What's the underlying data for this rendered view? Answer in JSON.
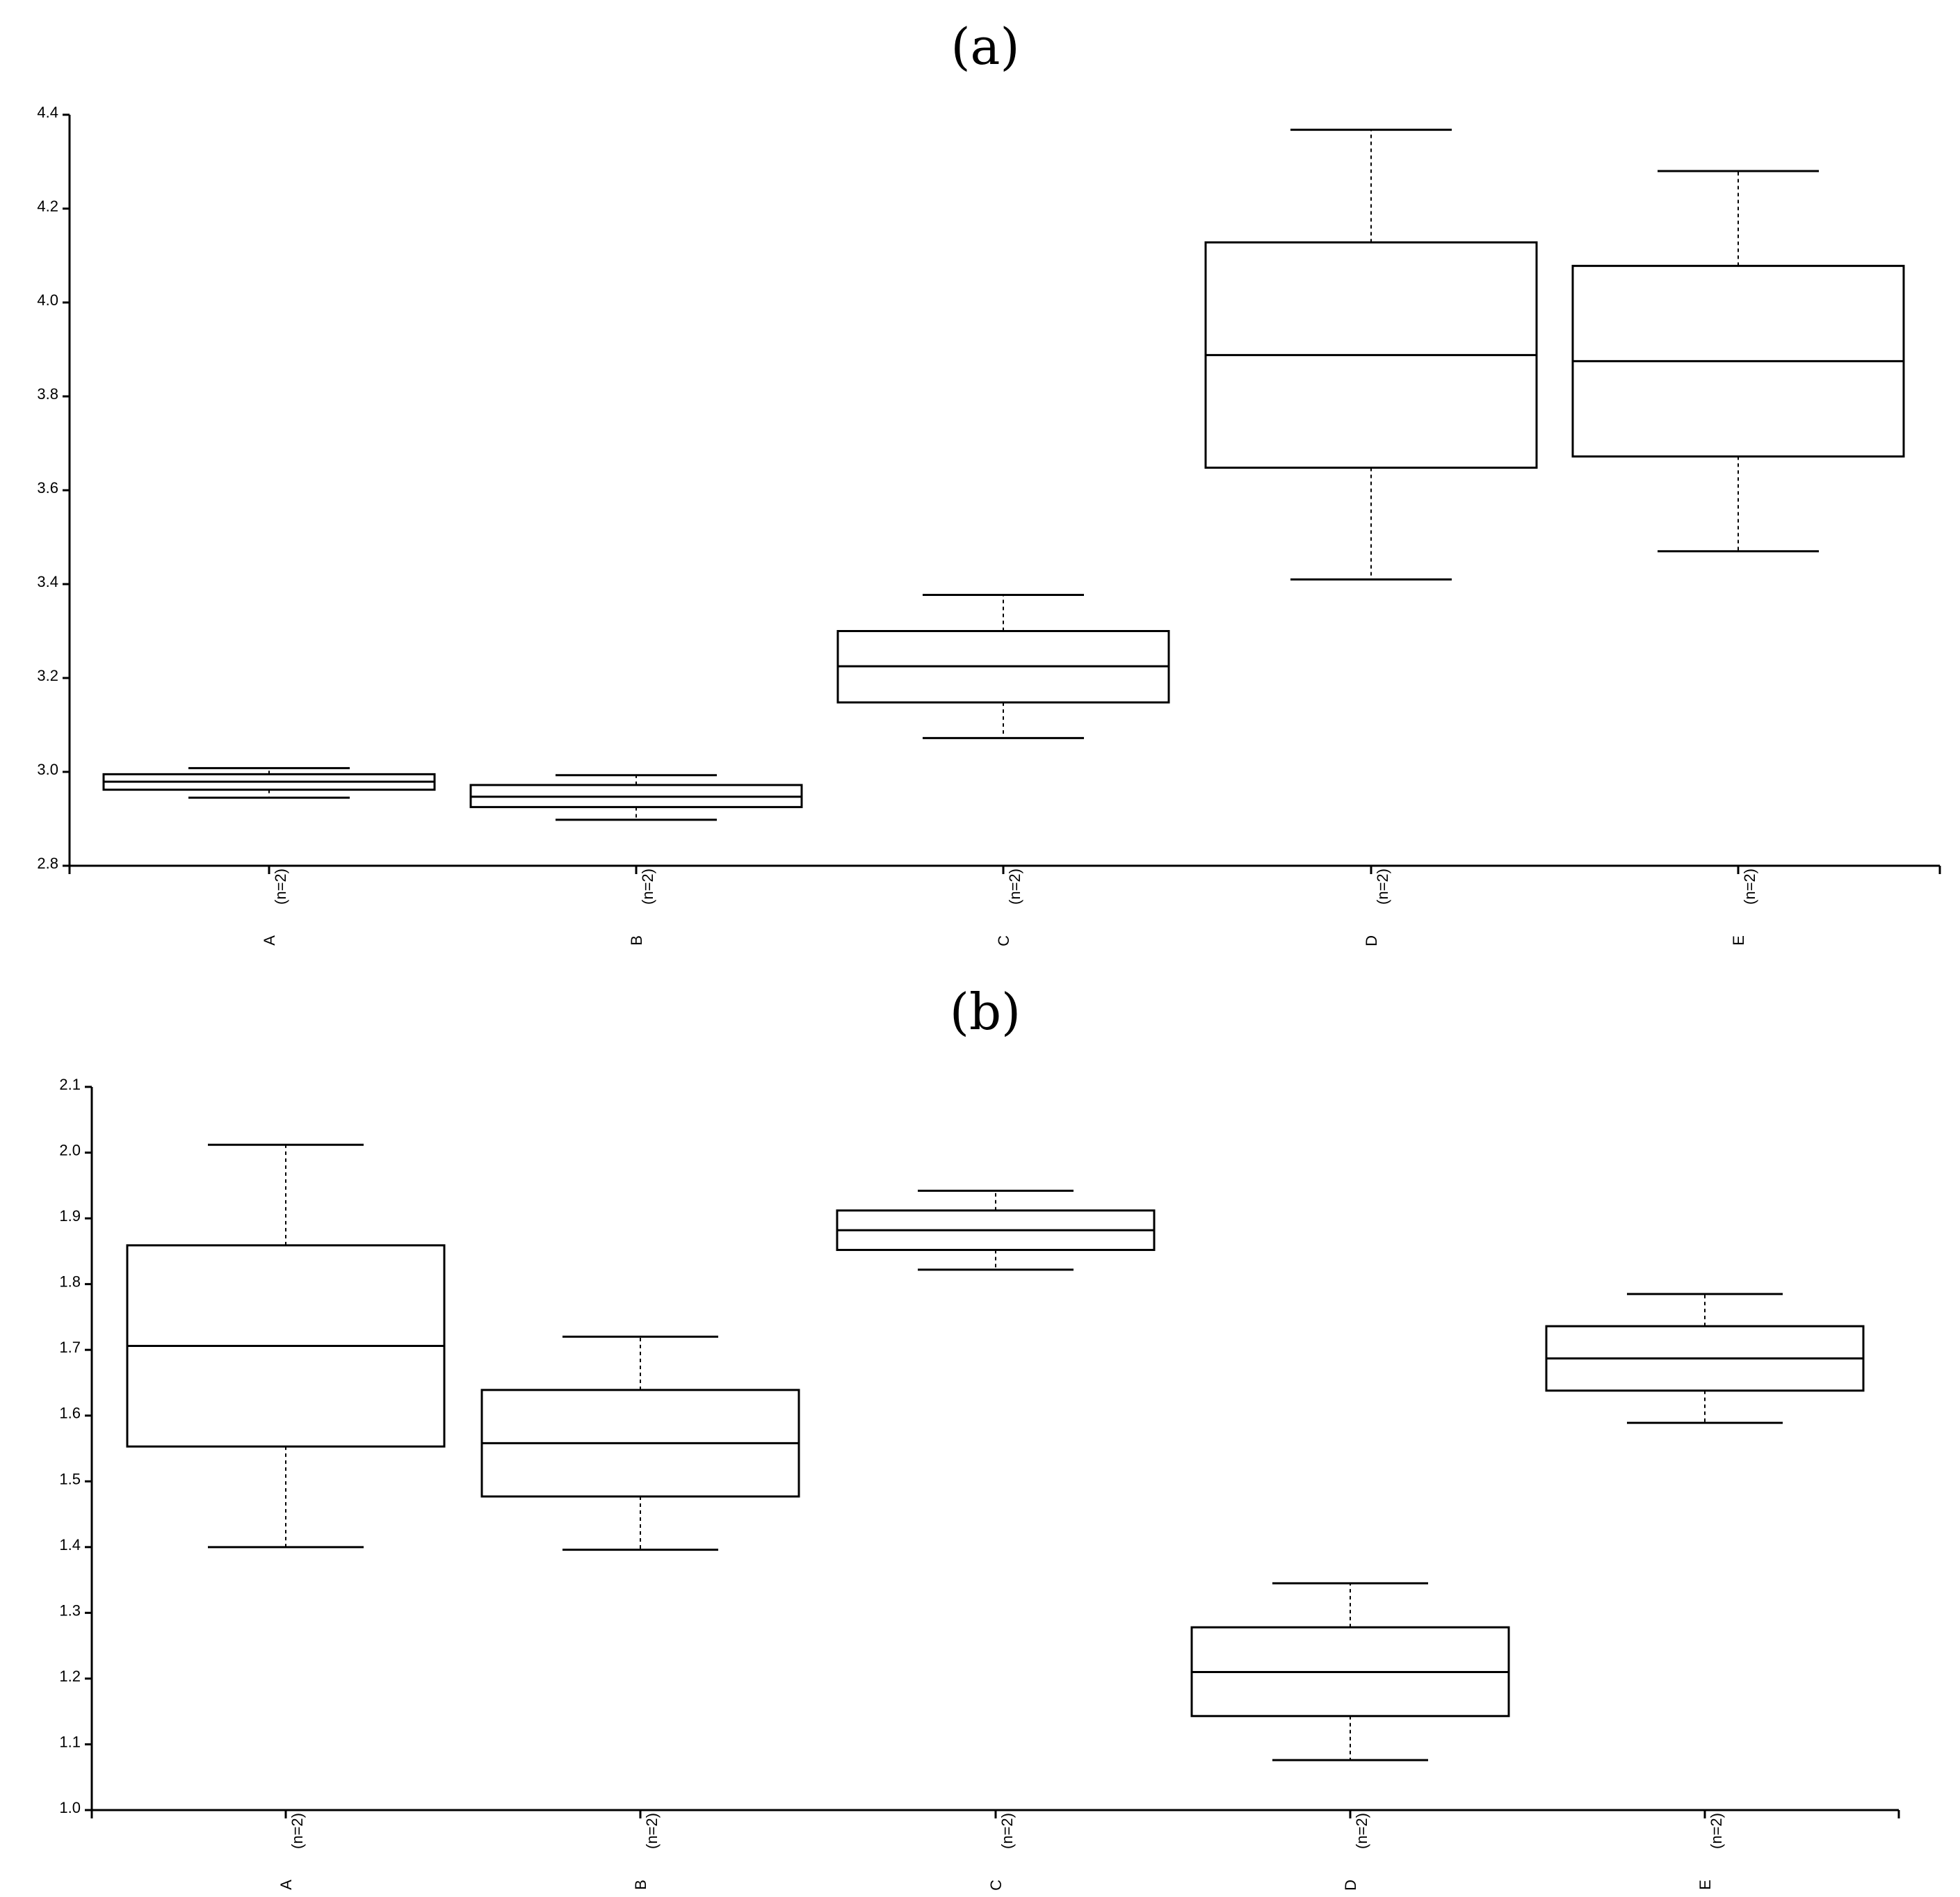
{
  "chart_data": [
    {
      "type": "boxplot",
      "title": "(a)",
      "ylim": [
        2.8,
        4.4
      ],
      "yticks": [
        "2.8",
        "3.0",
        "3.2",
        "3.4",
        "3.6",
        "3.8",
        "4.0",
        "4.2",
        "4.4"
      ],
      "categories": [
        "A",
        "B",
        "C",
        "D",
        "E"
      ],
      "count_labels": [
        "(n=2)",
        "(n=2)",
        "(n=2)",
        "(n=2)",
        "(n=2)"
      ],
      "boxes": [
        {
          "min": 2.945,
          "q1": 2.962,
          "median": 2.979,
          "q3": 2.995,
          "max": 3.008
        },
        {
          "min": 2.898,
          "q1": 2.925,
          "median": 2.947,
          "q3": 2.972,
          "max": 2.993
        },
        {
          "min": 3.072,
          "q1": 3.148,
          "median": 3.225,
          "q3": 3.3,
          "max": 3.377
        },
        {
          "min": 3.41,
          "q1": 3.648,
          "median": 3.888,
          "q3": 4.128,
          "max": 4.368
        },
        {
          "min": 3.47,
          "q1": 3.672,
          "median": 3.875,
          "q3": 4.078,
          "max": 4.28
        }
      ],
      "grid": false,
      "legend": "none"
    },
    {
      "type": "boxplot",
      "title": "(b)",
      "ylim": [
        1.0,
        2.1
      ],
      "yticks": [
        "1.0",
        "1.1",
        "1.2",
        "1.3",
        "1.4",
        "1.5",
        "1.6",
        "1.7",
        "1.8",
        "1.9",
        "2.0",
        "2.1"
      ],
      "categories": [
        "A",
        "B",
        "C",
        "D",
        "E"
      ],
      "count_labels": [
        "(n=2)",
        "(n=2)",
        "(n=2)",
        "(n=2)",
        "(n=2)"
      ],
      "boxes": [
        {
          "min": 1.4,
          "q1": 1.553,
          "median": 1.706,
          "q3": 1.859,
          "max": 2.012
        },
        {
          "min": 1.396,
          "q1": 1.477,
          "median": 1.558,
          "q3": 1.639,
          "max": 1.72
        },
        {
          "min": 1.822,
          "q1": 1.852,
          "median": 1.882,
          "q3": 1.912,
          "max": 1.942
        },
        {
          "min": 1.076,
          "q1": 1.143,
          "median": 1.21,
          "q3": 1.278,
          "max": 1.345
        },
        {
          "min": 1.589,
          "q1": 1.638,
          "median": 1.687,
          "q3": 1.736,
          "max": 1.785
        }
      ],
      "grid": false,
      "legend": "none"
    }
  ]
}
